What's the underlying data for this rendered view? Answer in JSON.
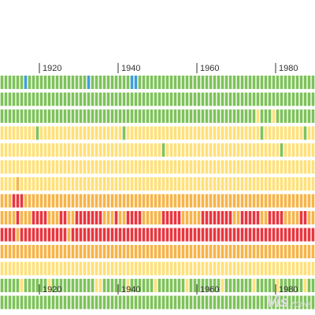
{
  "chart_data": {
    "type": "heatmap",
    "title": "",
    "x_start": 1910,
    "x_end": 1989,
    "x_ticks": [
      "1920",
      "1940",
      "1960",
      "1980"
    ],
    "x_tick_values": [
      1920,
      1940,
      1960,
      1980
    ],
    "row_count": 14,
    "colors": {
      "blue": "#3d9fd9",
      "green": "#7ec25a",
      "yellow": "#ffe07a",
      "orange": "#f7b449",
      "red": "#e8363f"
    },
    "categories_by_code": {
      "B": "blue",
      "G": "green",
      "Y": "yellow",
      "O": "orange",
      "R": "red"
    },
    "rows": [
      "GGGGGGBGGGGGGGGGGGGGGGBGGGGGGGGGGBBGGGGGGGGGGGGGGGGGGGGGGGGGGGGGGGGGGGGGGGGGGGGG",
      "GGGGGGGGGGGGGGGGGGGGGGGGGGGGGGGGGGGGGGGGGGGGGGGGGGGGGGGGGGGGGGGGGGGGGGGGGGGGGGGG",
      "GGGGGGGGGGGGGGGGGGGGGGGGGGGGGGGGGGGGGGGGGGGGGGGGGGGGGGGGGGGGGGGGGYGGGYGGGGGGGGGGG",
      "YYYYYYYYYGYYYYYYYYYYYYYYYYYYYYYGYYYYYYYYYYYYYYYYYYYYYYYYYYYYYYYYYYGYYYYYYYYYYGYY",
      "YYYYYYYYYYYYYYYYYYYYYYYYYYYYYYYYYYYYYYYYYGYYYYYYYYYYYYYYYYYYYYYYYYYYYYYGYYYYYYYYY",
      "YYYYYYYYYYYYYYYYYYYYYYYYYYYYYYYYYYYYYYYYYYYYYYYYYYYYYYYYYYYYYYYYYYYYYYYYYYYYYYYYY",
      "YYYYOYYYYYYYYYYYYYYYYYYYYYYYYYYYYYYYYYYYYYYYYYYYYYYYYYYYYYYYYYYYYYYYYYYYYYYYYYYYY",
      "OOORRROOOOOOOOOOOOOOOOOOOOOOOOOOOOOOOOOOOOOOOOOOOOOOOOOOOOOOOOOOOOOOOOOOOOOOOOOOO",
      "OOOOROOORRRROOORROORRRRRRROOOROORRRROOOOORRRRROOOOORRRRRRRROORRRRROORRRROOOORROOO",
      "RRRRORRRRRRRRRRRRORRRRRRRRRRRRRRRRRRRRRRRRRRRRRRRRRRRRRRRRRRRRRRRRRRRRRRRRRRRRRRR",
      "OOOOOOOOOOOOOOOOOOOOOOOOOOOOOOOOOOOOOOOOOOOOOOOOOOOOOOOOOOOOOOOOOOOOOOOOOOOOOOOOO",
      "YYYYYYYYYYYYYYYYYYYYYYYYYYYYYYYYYYYYYYYYYYYYYYYYYYYYYYYYYYYYYYYYYYYYYYYYYYYYYYYYY",
      "GGGGGYGGGGGGYGGGGGGGGGGGYYGGGGGGYGGGGGGYGGGGGGGYGGGGGGGGYGGGGGGGYGGGGGYGGGGGGYGG",
      "GGGGGGGGGGGGGGGGGGGGGGGGGGGGGGGGGGGGGGGGGGGGGGGGGGGGGGGGGGGGGGGGGGGGGGGGGGGGGGGGG"
    ]
  },
  "watermark": {
    "main": "Vis",
    "sub": "zone"
  }
}
